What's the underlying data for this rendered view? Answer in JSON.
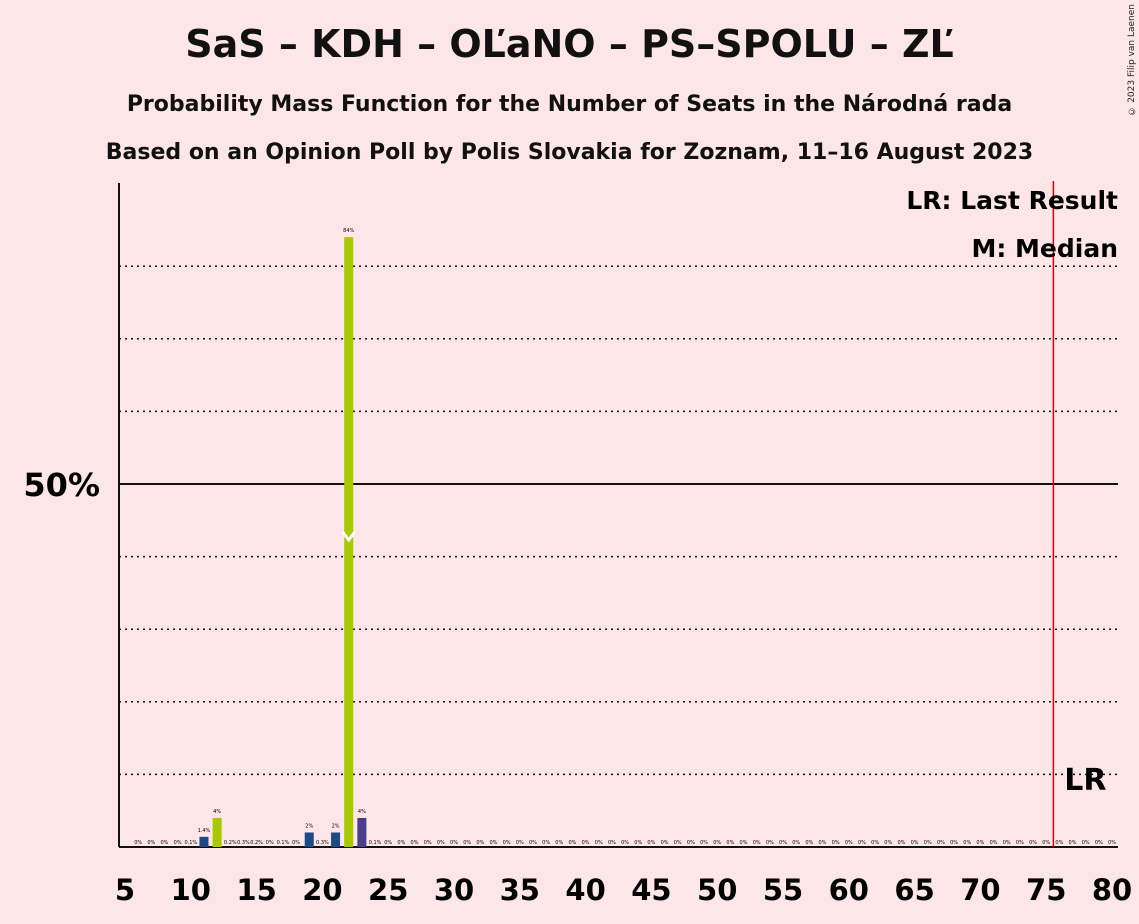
{
  "title": "SaS – KDH – OĽaNO – PS–SPOLU – ZĽ",
  "subtitle": "Probability Mass Function for the Number of Seats in the Národná rada",
  "subtitle2": "Based on an Opinion Poll by Polis Slovakia for Zoznam, 11–16 August 2023",
  "copyright": "© 2023 Filip van Laenen",
  "colors": {
    "background": "#fde6e8",
    "sas": "#a8c800",
    "kdh": "#1b4a84",
    "ps": "#4b3d8c",
    "last_result": "#e00000"
  },
  "chart_data": {
    "type": "bar",
    "xlabel": "",
    "ylabel": "",
    "xlim": [
      5,
      80
    ],
    "ylim": [
      0,
      91
    ],
    "x_ticks": [
      5,
      10,
      15,
      20,
      25,
      30,
      35,
      40,
      45,
      50,
      55,
      60,
      65,
      70,
      75,
      80
    ],
    "y_major_label": "50%",
    "y_major_value": 50,
    "y_dotted_gridlines": [
      10,
      20,
      30,
      40,
      60,
      70,
      80
    ],
    "legend": [
      "LR: Last Result",
      "M: Median"
    ],
    "legend_position": "top-right",
    "last_result": 76,
    "last_result_label": "LR",
    "median": 22,
    "bars": [
      {
        "x": 6,
        "value": 0,
        "label": "0%"
      },
      {
        "x": 7,
        "value": 0,
        "label": "0%"
      },
      {
        "x": 8,
        "value": 0,
        "label": "0%"
      },
      {
        "x": 9,
        "value": 0,
        "label": "0%"
      },
      {
        "x": 10,
        "value": 0.1,
        "label": "0.1%"
      },
      {
        "x": 11,
        "value": 1.4,
        "label": "1.4%",
        "series": "kdh"
      },
      {
        "x": 12,
        "value": 4,
        "label": "4%",
        "series": "sas"
      },
      {
        "x": 13,
        "value": 0.2,
        "label": "0.2%"
      },
      {
        "x": 14,
        "value": 0.3,
        "label": "0.3%"
      },
      {
        "x": 15,
        "value": 0.2,
        "label": "0.2%"
      },
      {
        "x": 16,
        "value": 0,
        "label": "0%"
      },
      {
        "x": 17,
        "value": 0.1,
        "label": "0.1%"
      },
      {
        "x": 18,
        "value": 0,
        "label": "0%"
      },
      {
        "x": 19,
        "value": 2,
        "label": "2%",
        "series": "kdh"
      },
      {
        "x": 20,
        "value": 0.3,
        "label": "0.3%"
      },
      {
        "x": 21,
        "value": 2,
        "label": "2%",
        "series": "kdh"
      },
      {
        "x": 22,
        "value": 84,
        "label": "84%",
        "series": "sas"
      },
      {
        "x": 23,
        "value": 4,
        "label": "4%",
        "series": "ps"
      },
      {
        "x": 24,
        "value": 0.1,
        "label": "0.1%"
      },
      {
        "x": 25,
        "value": 0,
        "label": "0%"
      },
      {
        "x": 26,
        "value": 0,
        "label": "0%"
      },
      {
        "x": 27,
        "value": 0,
        "label": "0%"
      },
      {
        "x": 28,
        "value": 0,
        "label": "0%"
      },
      {
        "x": 29,
        "value": 0,
        "label": "0%"
      },
      {
        "x": 30,
        "value": 0,
        "label": "0%"
      },
      {
        "x": 31,
        "value": 0,
        "label": "0%"
      },
      {
        "x": 32,
        "value": 0,
        "label": "0%"
      },
      {
        "x": 33,
        "value": 0,
        "label": "0%"
      },
      {
        "x": 34,
        "value": 0,
        "label": "0%"
      },
      {
        "x": 35,
        "value": 0,
        "label": "0%"
      },
      {
        "x": 36,
        "value": 0,
        "label": "0%"
      },
      {
        "x": 37,
        "value": 0,
        "label": "0%"
      },
      {
        "x": 38,
        "value": 0,
        "label": "0%"
      },
      {
        "x": 39,
        "value": 0,
        "label": "0%"
      },
      {
        "x": 40,
        "value": 0,
        "label": "0%"
      },
      {
        "x": 41,
        "value": 0,
        "label": "0%"
      },
      {
        "x": 42,
        "value": 0,
        "label": "0%"
      },
      {
        "x": 43,
        "value": 0,
        "label": "0%"
      },
      {
        "x": 44,
        "value": 0,
        "label": "0%"
      },
      {
        "x": 45,
        "value": 0,
        "label": "0%"
      },
      {
        "x": 46,
        "value": 0,
        "label": "0%"
      },
      {
        "x": 47,
        "value": 0,
        "label": "0%"
      },
      {
        "x": 48,
        "value": 0,
        "label": "0%"
      },
      {
        "x": 49,
        "value": 0,
        "label": "0%"
      },
      {
        "x": 50,
        "value": 0,
        "label": "0%"
      },
      {
        "x": 51,
        "value": 0,
        "label": "0%"
      },
      {
        "x": 52,
        "value": 0,
        "label": "0%"
      },
      {
        "x": 53,
        "value": 0,
        "label": "0%"
      },
      {
        "x": 54,
        "value": 0,
        "label": "0%"
      },
      {
        "x": 55,
        "value": 0,
        "label": "0%"
      },
      {
        "x": 56,
        "value": 0,
        "label": "0%"
      },
      {
        "x": 57,
        "value": 0,
        "label": "0%"
      },
      {
        "x": 58,
        "value": 0,
        "label": "0%"
      },
      {
        "x": 59,
        "value": 0,
        "label": "0%"
      },
      {
        "x": 60,
        "value": 0,
        "label": "0%"
      },
      {
        "x": 61,
        "value": 0,
        "label": "0%"
      },
      {
        "x": 62,
        "value": 0,
        "label": "0%"
      },
      {
        "x": 63,
        "value": 0,
        "label": "0%"
      },
      {
        "x": 64,
        "value": 0,
        "label": "0%"
      },
      {
        "x": 65,
        "value": 0,
        "label": "0%"
      },
      {
        "x": 66,
        "value": 0,
        "label": "0%"
      },
      {
        "x": 67,
        "value": 0,
        "label": "0%"
      },
      {
        "x": 68,
        "value": 0,
        "label": "0%"
      },
      {
        "x": 69,
        "value": 0,
        "label": "0%"
      },
      {
        "x": 70,
        "value": 0,
        "label": "0%"
      },
      {
        "x": 71,
        "value": 0,
        "label": "0%"
      },
      {
        "x": 72,
        "value": 0,
        "label": "0%"
      },
      {
        "x": 73,
        "value": 0,
        "label": "0%"
      },
      {
        "x": 74,
        "value": 0,
        "label": "0%"
      },
      {
        "x": 75,
        "value": 0,
        "label": "0%"
      },
      {
        "x": 76,
        "value": 0,
        "label": "0%"
      },
      {
        "x": 77,
        "value": 0,
        "label": "0%"
      },
      {
        "x": 78,
        "value": 0,
        "label": "0%"
      },
      {
        "x": 79,
        "value": 0,
        "label": "0%"
      },
      {
        "x": 80,
        "value": 0,
        "label": "0%"
      }
    ]
  }
}
